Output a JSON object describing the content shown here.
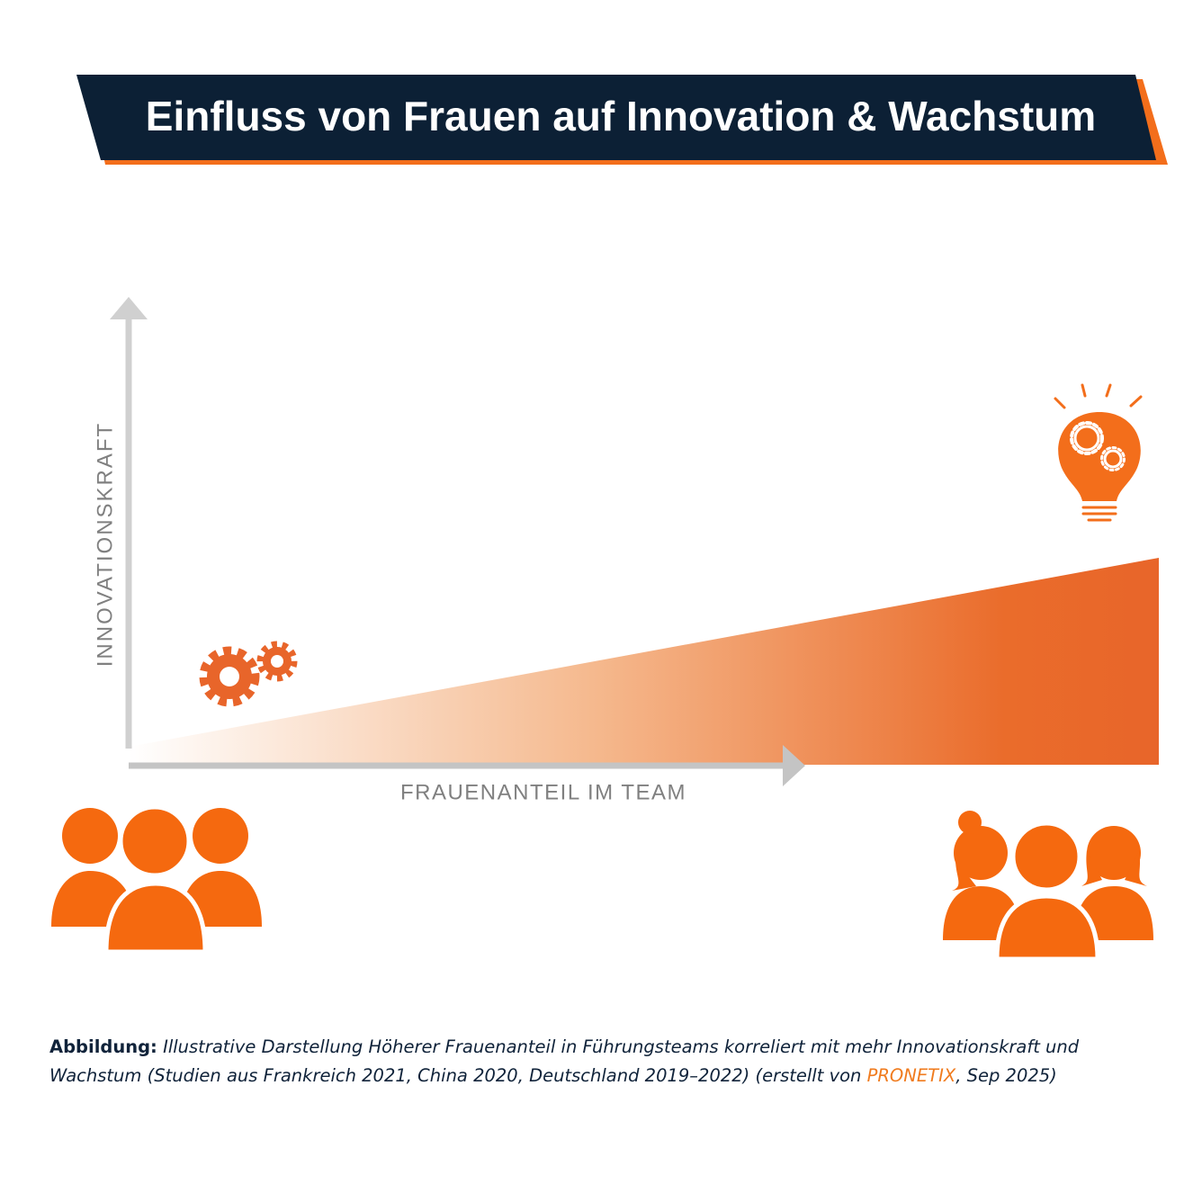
{
  "header": {
    "title": "Einfluss von Frauen auf Innovation & Wachstum"
  },
  "axes": {
    "y_label": "INNOVATIONSKRAFT",
    "x_label": "FRAUENANTEIL IM TEAM"
  },
  "caption": {
    "label": "Abbildung:",
    "text": "Illustrative Darstellung Höherer Frauenanteil in Führungsteams korreliert mit mehr Innovationskraft und Wachstum (Studien aus Frankreich 2021, China 2020, Deutschland 2019–2022) (erstellt von",
    "brand": "PRONETIX",
    "suffix": ", Sep 2025)"
  }
}
